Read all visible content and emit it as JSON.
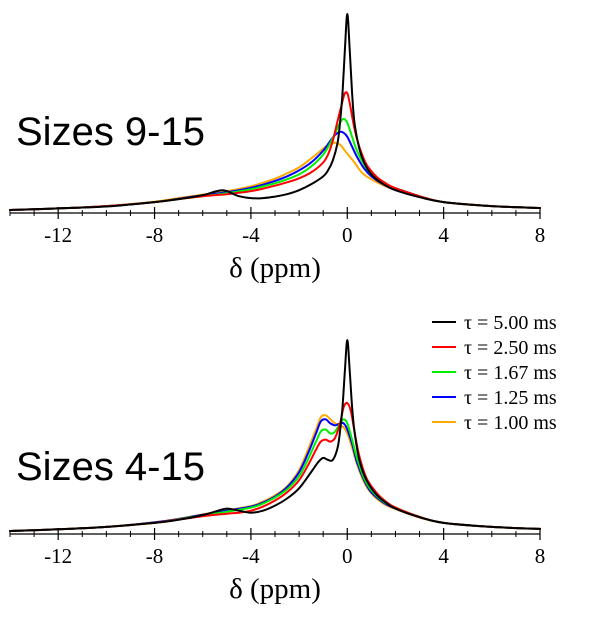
{
  "chart_data": [
    {
      "type": "line",
      "panel_label": "Sizes 9-15",
      "xlabel": "δ (ppm)",
      "xlim": [
        -14,
        8
      ],
      "ylim": [
        0,
        1.0
      ],
      "x_ticks": [
        "-12",
        "-8",
        "-4",
        "0",
        "4",
        "8"
      ],
      "grid": false,
      "series": [
        {
          "name": "τ = 5.00 ms",
          "color": "#000000",
          "x": [
            -14,
            -12,
            -10,
            -8,
            -7,
            -6,
            -5.5,
            -5.2,
            -5.0,
            -4.8,
            -4.5,
            -4.0,
            -3.5,
            -3.0,
            -2.5,
            -2.0,
            -1.5,
            -1.0,
            -0.8,
            -0.6,
            -0.4,
            -0.3,
            -0.2,
            -0.1,
            0.0,
            0.1,
            0.2,
            0.3,
            0.5,
            0.7,
            1.0,
            1.5,
            2.0,
            3.0,
            4.0,
            6.0,
            8.0
          ],
          "y": [
            0.01,
            0.018,
            0.028,
            0.05,
            0.065,
            0.085,
            0.103,
            0.11,
            0.106,
            0.095,
            0.08,
            0.07,
            0.07,
            0.078,
            0.09,
            0.11,
            0.14,
            0.18,
            0.21,
            0.26,
            0.35,
            0.45,
            0.6,
            0.82,
            1.0,
            0.82,
            0.6,
            0.45,
            0.32,
            0.25,
            0.19,
            0.14,
            0.11,
            0.075,
            0.05,
            0.03,
            0.02
          ]
        },
        {
          "name": "τ = 2.50 ms",
          "color": "#ff0000",
          "x": [
            -14,
            -12,
            -10,
            -8,
            -7,
            -6,
            -5,
            -4.5,
            -4,
            -3.5,
            -3,
            -2.5,
            -2,
            -1.5,
            -1,
            -0.8,
            -0.6,
            -0.4,
            -0.2,
            -0.1,
            0.0,
            0.1,
            0.3,
            0.5,
            0.8,
            1.2,
            1.6,
            2,
            3,
            4,
            6,
            8
          ],
          "y": [
            0.01,
            0.018,
            0.03,
            0.05,
            0.065,
            0.08,
            0.09,
            0.097,
            0.105,
            0.118,
            0.133,
            0.15,
            0.17,
            0.2,
            0.25,
            0.29,
            0.36,
            0.46,
            0.56,
            0.6,
            0.6,
            0.55,
            0.42,
            0.33,
            0.24,
            0.18,
            0.145,
            0.12,
            0.08,
            0.05,
            0.03,
            0.02
          ]
        },
        {
          "name": "τ = 1.67 ms",
          "color": "#00ee00",
          "x": [
            -14,
            -12,
            -10,
            -8,
            -7,
            -6,
            -5,
            -4,
            -3.5,
            -3,
            -2.5,
            -2,
            -1.5,
            -1,
            -0.7,
            -0.5,
            -0.3,
            -0.15,
            0.0,
            0.2,
            0.4,
            0.7,
            1.0,
            1.5,
            2,
            3,
            4,
            6,
            8
          ],
          "y": [
            0.01,
            0.018,
            0.03,
            0.05,
            0.065,
            0.08,
            0.095,
            0.115,
            0.13,
            0.145,
            0.165,
            0.19,
            0.23,
            0.29,
            0.35,
            0.4,
            0.45,
            0.47,
            0.45,
            0.38,
            0.31,
            0.24,
            0.19,
            0.145,
            0.12,
            0.08,
            0.05,
            0.03,
            0.02
          ]
        },
        {
          "name": "τ = 1.25 ms",
          "color": "#0000ff",
          "x": [
            -14,
            -12,
            -10,
            -8,
            -7,
            -6,
            -5,
            -4,
            -3.5,
            -3,
            -2.5,
            -2,
            -1.5,
            -1,
            -0.7,
            -0.5,
            -0.3,
            -0.15,
            0.0,
            0.2,
            0.4,
            0.7,
            1.0,
            1.5,
            2,
            3,
            4,
            6,
            8
          ],
          "y": [
            0.01,
            0.018,
            0.03,
            0.05,
            0.067,
            0.085,
            0.1,
            0.122,
            0.138,
            0.157,
            0.18,
            0.21,
            0.25,
            0.31,
            0.36,
            0.39,
            0.405,
            0.4,
            0.38,
            0.33,
            0.28,
            0.22,
            0.18,
            0.14,
            0.12,
            0.08,
            0.05,
            0.03,
            0.02
          ]
        },
        {
          "name": "τ = 1.00 ms",
          "color": "#ffaa00",
          "x": [
            -14,
            -12,
            -10,
            -8,
            -7,
            -6,
            -5,
            -4,
            -3.5,
            -3,
            -2.5,
            -2,
            -1.5,
            -1.2,
            -0.9,
            -0.7,
            -0.5,
            -0.3,
            -0.1,
            0.1,
            0.3,
            0.6,
            1.0,
            1.5,
            2,
            3,
            4,
            6,
            8
          ],
          "y": [
            0.01,
            0.018,
            0.03,
            0.052,
            0.07,
            0.088,
            0.105,
            0.13,
            0.148,
            0.168,
            0.195,
            0.225,
            0.27,
            0.3,
            0.33,
            0.345,
            0.35,
            0.34,
            0.31,
            0.28,
            0.25,
            0.2,
            0.165,
            0.135,
            0.115,
            0.078,
            0.05,
            0.03,
            0.02
          ]
        }
      ]
    },
    {
      "type": "line",
      "panel_label": "Sizes 4-15",
      "xlabel": "δ (ppm)",
      "xlim": [
        -14,
        8
      ],
      "ylim": [
        0,
        1.0
      ],
      "x_ticks": [
        "-12",
        "-8",
        "-4",
        "0",
        "4",
        "8"
      ],
      "grid": false,
      "legend": {
        "position": "top-right",
        "entries": [
          "τ = 5.00 ms",
          "τ = 2.50 ms",
          "τ = 1.67 ms",
          "τ = 1.25 ms",
          "τ = 1.00 ms"
        ]
      },
      "series": [
        {
          "name": "τ = 5.00 ms",
          "color": "#000000",
          "x": [
            -14,
            -12,
            -10,
            -8,
            -7,
            -6,
            -5.5,
            -5.0,
            -4.5,
            -4.0,
            -3.5,
            -3.0,
            -2.5,
            -2.0,
            -1.5,
            -1.2,
            -1.0,
            -0.8,
            -0.6,
            -0.4,
            -0.3,
            -0.2,
            -0.1,
            0.0,
            0.1,
            0.2,
            0.3,
            0.5,
            0.8,
            1.2,
            1.6,
            2,
            3,
            4,
            6,
            8
          ],
          "y": [
            0.01,
            0.018,
            0.03,
            0.05,
            0.065,
            0.088,
            0.105,
            0.12,
            0.11,
            0.1,
            0.11,
            0.135,
            0.17,
            0.22,
            0.3,
            0.35,
            0.37,
            0.36,
            0.36,
            0.42,
            0.5,
            0.62,
            0.8,
            0.95,
            0.8,
            0.62,
            0.5,
            0.36,
            0.26,
            0.19,
            0.15,
            0.12,
            0.078,
            0.05,
            0.03,
            0.02
          ]
        },
        {
          "name": "τ = 2.50 ms",
          "color": "#ff0000",
          "x": [
            -14,
            -12,
            -10,
            -8,
            -7,
            -6,
            -5,
            -4.5,
            -4,
            -3.5,
            -3,
            -2.5,
            -2,
            -1.6,
            -1.3,
            -1.1,
            -0.9,
            -0.7,
            -0.5,
            -0.3,
            -0.15,
            0.0,
            0.15,
            0.3,
            0.5,
            0.8,
            1.2,
            1.6,
            2,
            3,
            4,
            6,
            8
          ],
          "y": [
            0.01,
            0.018,
            0.03,
            0.05,
            0.066,
            0.083,
            0.095,
            0.1,
            0.11,
            0.13,
            0.16,
            0.2,
            0.26,
            0.34,
            0.41,
            0.45,
            0.46,
            0.45,
            0.47,
            0.54,
            0.62,
            0.64,
            0.6,
            0.5,
            0.38,
            0.27,
            0.2,
            0.155,
            0.125,
            0.08,
            0.05,
            0.03,
            0.02
          ]
        },
        {
          "name": "τ = 1.67 ms",
          "color": "#00ee00",
          "x": [
            -14,
            -12,
            -10,
            -8,
            -7,
            -6,
            -5,
            -4,
            -3.5,
            -3,
            -2.5,
            -2,
            -1.6,
            -1.3,
            -1.1,
            -0.9,
            -0.7,
            -0.5,
            -0.3,
            -0.15,
            0.0,
            0.2,
            0.4,
            0.7,
            1.0,
            1.5,
            2,
            3,
            4,
            6,
            8
          ],
          "y": [
            0.01,
            0.018,
            0.03,
            0.05,
            0.067,
            0.087,
            0.105,
            0.125,
            0.145,
            0.175,
            0.215,
            0.28,
            0.37,
            0.45,
            0.5,
            0.51,
            0.49,
            0.5,
            0.54,
            0.56,
            0.54,
            0.46,
            0.37,
            0.27,
            0.21,
            0.155,
            0.125,
            0.08,
            0.05,
            0.03,
            0.02
          ]
        },
        {
          "name": "τ = 1.25 ms",
          "color": "#0000ff",
          "x": [
            -14,
            -12,
            -10,
            -8,
            -7,
            -6,
            -5,
            -4,
            -3.5,
            -3,
            -2.5,
            -2,
            -1.6,
            -1.3,
            -1.1,
            -0.9,
            -0.7,
            -0.5,
            -0.3,
            -0.15,
            0.0,
            0.2,
            0.4,
            0.7,
            1.0,
            1.5,
            2,
            3,
            4,
            6,
            8
          ],
          "y": [
            0.01,
            0.018,
            0.03,
            0.052,
            0.069,
            0.09,
            0.11,
            0.13,
            0.15,
            0.18,
            0.225,
            0.3,
            0.4,
            0.49,
            0.55,
            0.56,
            0.54,
            0.53,
            0.54,
            0.54,
            0.51,
            0.44,
            0.35,
            0.26,
            0.2,
            0.15,
            0.12,
            0.078,
            0.05,
            0.03,
            0.02
          ]
        },
        {
          "name": "τ = 1.00 ms",
          "color": "#ffaa00",
          "x": [
            -14,
            -12,
            -10,
            -8,
            -7,
            -6,
            -5,
            -4,
            -3.5,
            -3,
            -2.5,
            -2,
            -1.6,
            -1.3,
            -1.1,
            -0.9,
            -0.7,
            -0.5,
            -0.3,
            -0.15,
            0.0,
            0.2,
            0.4,
            0.7,
            1.0,
            1.5,
            2,
            3,
            4,
            6,
            8
          ],
          "y": [
            0.01,
            0.018,
            0.03,
            0.053,
            0.07,
            0.092,
            0.112,
            0.133,
            0.155,
            0.185,
            0.23,
            0.31,
            0.42,
            0.51,
            0.57,
            0.58,
            0.56,
            0.54,
            0.53,
            0.52,
            0.49,
            0.42,
            0.34,
            0.25,
            0.195,
            0.145,
            0.118,
            0.076,
            0.05,
            0.03,
            0.02
          ]
        }
      ]
    }
  ]
}
